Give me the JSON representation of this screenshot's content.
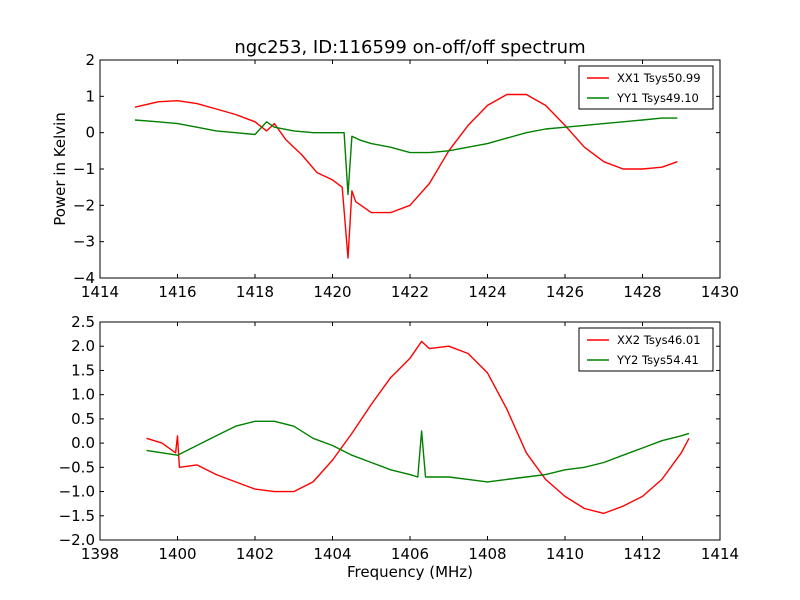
{
  "figure": {
    "title": "ngc253, ID:116599 on-off/off spectrum",
    "xlabel": "Frequency (MHz)"
  },
  "chart_data": [
    {
      "type": "line",
      "title": "ngc253, ID:116599 on-off/off spectrum",
      "xlabel": "",
      "ylabel": "Power in Kelvin",
      "xlim": [
        1414,
        1430
      ],
      "ylim": [
        -4,
        2
      ],
      "xticks": [
        "1414",
        "1416",
        "1418",
        "1420",
        "1422",
        "1424",
        "1426",
        "1428",
        "1430"
      ],
      "yticks": [
        "2",
        "1",
        "0",
        "−1",
        "−2",
        "−3",
        "−4"
      ],
      "legend": "top-right",
      "grid": false,
      "series": [
        {
          "name": "XX1 Tsys50.99",
          "color": "#ff0000",
          "x": [
            1414.9,
            1415.5,
            1416.0,
            1416.5,
            1417.0,
            1417.5,
            1418.0,
            1418.3,
            1418.5,
            1418.8,
            1419.2,
            1419.6,
            1420.0,
            1420.25,
            1420.4,
            1420.5,
            1420.6,
            1421.0,
            1421.5,
            1422.0,
            1422.5,
            1423.0,
            1423.5,
            1424.0,
            1424.5,
            1425.0,
            1425.5,
            1426.0,
            1426.5,
            1427.0,
            1427.5,
            1428.0,
            1428.5,
            1428.9
          ],
          "y": [
            0.7,
            0.85,
            0.88,
            0.8,
            0.65,
            0.5,
            0.3,
            0.05,
            0.25,
            -0.2,
            -0.6,
            -1.1,
            -1.3,
            -1.5,
            -3.45,
            -1.6,
            -1.9,
            -2.2,
            -2.2,
            -2.0,
            -1.4,
            -0.5,
            0.2,
            0.75,
            1.05,
            1.05,
            0.75,
            0.2,
            -0.4,
            -0.8,
            -1.0,
            -1.0,
            -0.95,
            -0.8
          ]
        },
        {
          "name": "YY1 Tsys49.10",
          "color": "#008000",
          "x": [
            1414.9,
            1415.5,
            1416.0,
            1416.5,
            1417.0,
            1417.5,
            1418.0,
            1418.3,
            1418.5,
            1419.0,
            1419.5,
            1420.0,
            1420.3,
            1420.4,
            1420.5,
            1420.7,
            1421.0,
            1421.5,
            1422.0,
            1422.5,
            1423.0,
            1423.5,
            1424.0,
            1424.5,
            1425.0,
            1425.5,
            1426.0,
            1426.5,
            1427.0,
            1427.5,
            1428.0,
            1428.5,
            1428.9
          ],
          "y": [
            0.35,
            0.3,
            0.25,
            0.15,
            0.05,
            0.0,
            -0.05,
            0.3,
            0.15,
            0.05,
            0.0,
            0.0,
            0.0,
            -1.7,
            -0.1,
            -0.2,
            -0.3,
            -0.4,
            -0.55,
            -0.55,
            -0.5,
            -0.4,
            -0.3,
            -0.15,
            0.0,
            0.1,
            0.15,
            0.2,
            0.25,
            0.3,
            0.35,
            0.4,
            0.4
          ]
        }
      ]
    },
    {
      "type": "line",
      "title": "",
      "xlabel": "Frequency (MHz)",
      "ylabel": "",
      "xlim": [
        1398,
        1414
      ],
      "ylim": [
        -2.0,
        2.5
      ],
      "xticks": [
        "1398",
        "1400",
        "1402",
        "1404",
        "1406",
        "1408",
        "1410",
        "1412",
        "1414"
      ],
      "yticks": [
        "2.5",
        "2.0",
        "1.5",
        "1.0",
        "0.5",
        "0.0",
        "−0.5",
        "−1.0",
        "−1.5",
        "−2.0"
      ],
      "legend": "top-right",
      "grid": false,
      "series": [
        {
          "name": "XX2 Tsys46.01",
          "color": "#ff0000",
          "x": [
            1399.2,
            1399.6,
            1399.95,
            1400.0,
            1400.05,
            1400.5,
            1401.0,
            1401.5,
            1402.0,
            1402.5,
            1403.0,
            1403.5,
            1404.0,
            1404.5,
            1405.0,
            1405.5,
            1406.0,
            1406.3,
            1406.5,
            1407.0,
            1407.5,
            1408.0,
            1408.5,
            1409.0,
            1409.5,
            1410.0,
            1410.5,
            1411.0,
            1411.5,
            1412.0,
            1412.5,
            1413.0,
            1413.2
          ],
          "y": [
            0.1,
            0.0,
            -0.2,
            0.15,
            -0.5,
            -0.45,
            -0.65,
            -0.8,
            -0.95,
            -1.0,
            -1.0,
            -0.8,
            -0.35,
            0.2,
            0.8,
            1.35,
            1.75,
            2.1,
            1.95,
            2.0,
            1.85,
            1.45,
            0.7,
            -0.2,
            -0.75,
            -1.1,
            -1.35,
            -1.45,
            -1.3,
            -1.1,
            -0.75,
            -0.2,
            0.1
          ]
        },
        {
          "name": "YY2 Tsys54.41",
          "color": "#008000",
          "x": [
            1399.2,
            1399.6,
            1400.0,
            1400.5,
            1401.0,
            1401.5,
            1402.0,
            1402.5,
            1403.0,
            1403.5,
            1404.0,
            1404.5,
            1405.0,
            1405.5,
            1406.0,
            1406.2,
            1406.3,
            1406.4,
            1406.6,
            1407.0,
            1407.5,
            1408.0,
            1408.5,
            1409.0,
            1409.5,
            1410.0,
            1410.5,
            1411.0,
            1411.5,
            1412.0,
            1412.5,
            1413.0,
            1413.2
          ],
          "y": [
            -0.15,
            -0.2,
            -0.25,
            -0.05,
            0.15,
            0.35,
            0.45,
            0.45,
            0.35,
            0.1,
            -0.05,
            -0.25,
            -0.4,
            -0.55,
            -0.65,
            -0.7,
            0.25,
            -0.7,
            -0.7,
            -0.7,
            -0.75,
            -0.8,
            -0.75,
            -0.7,
            -0.65,
            -0.55,
            -0.5,
            -0.4,
            -0.25,
            -0.1,
            0.05,
            0.15,
            0.2
          ]
        }
      ]
    }
  ]
}
